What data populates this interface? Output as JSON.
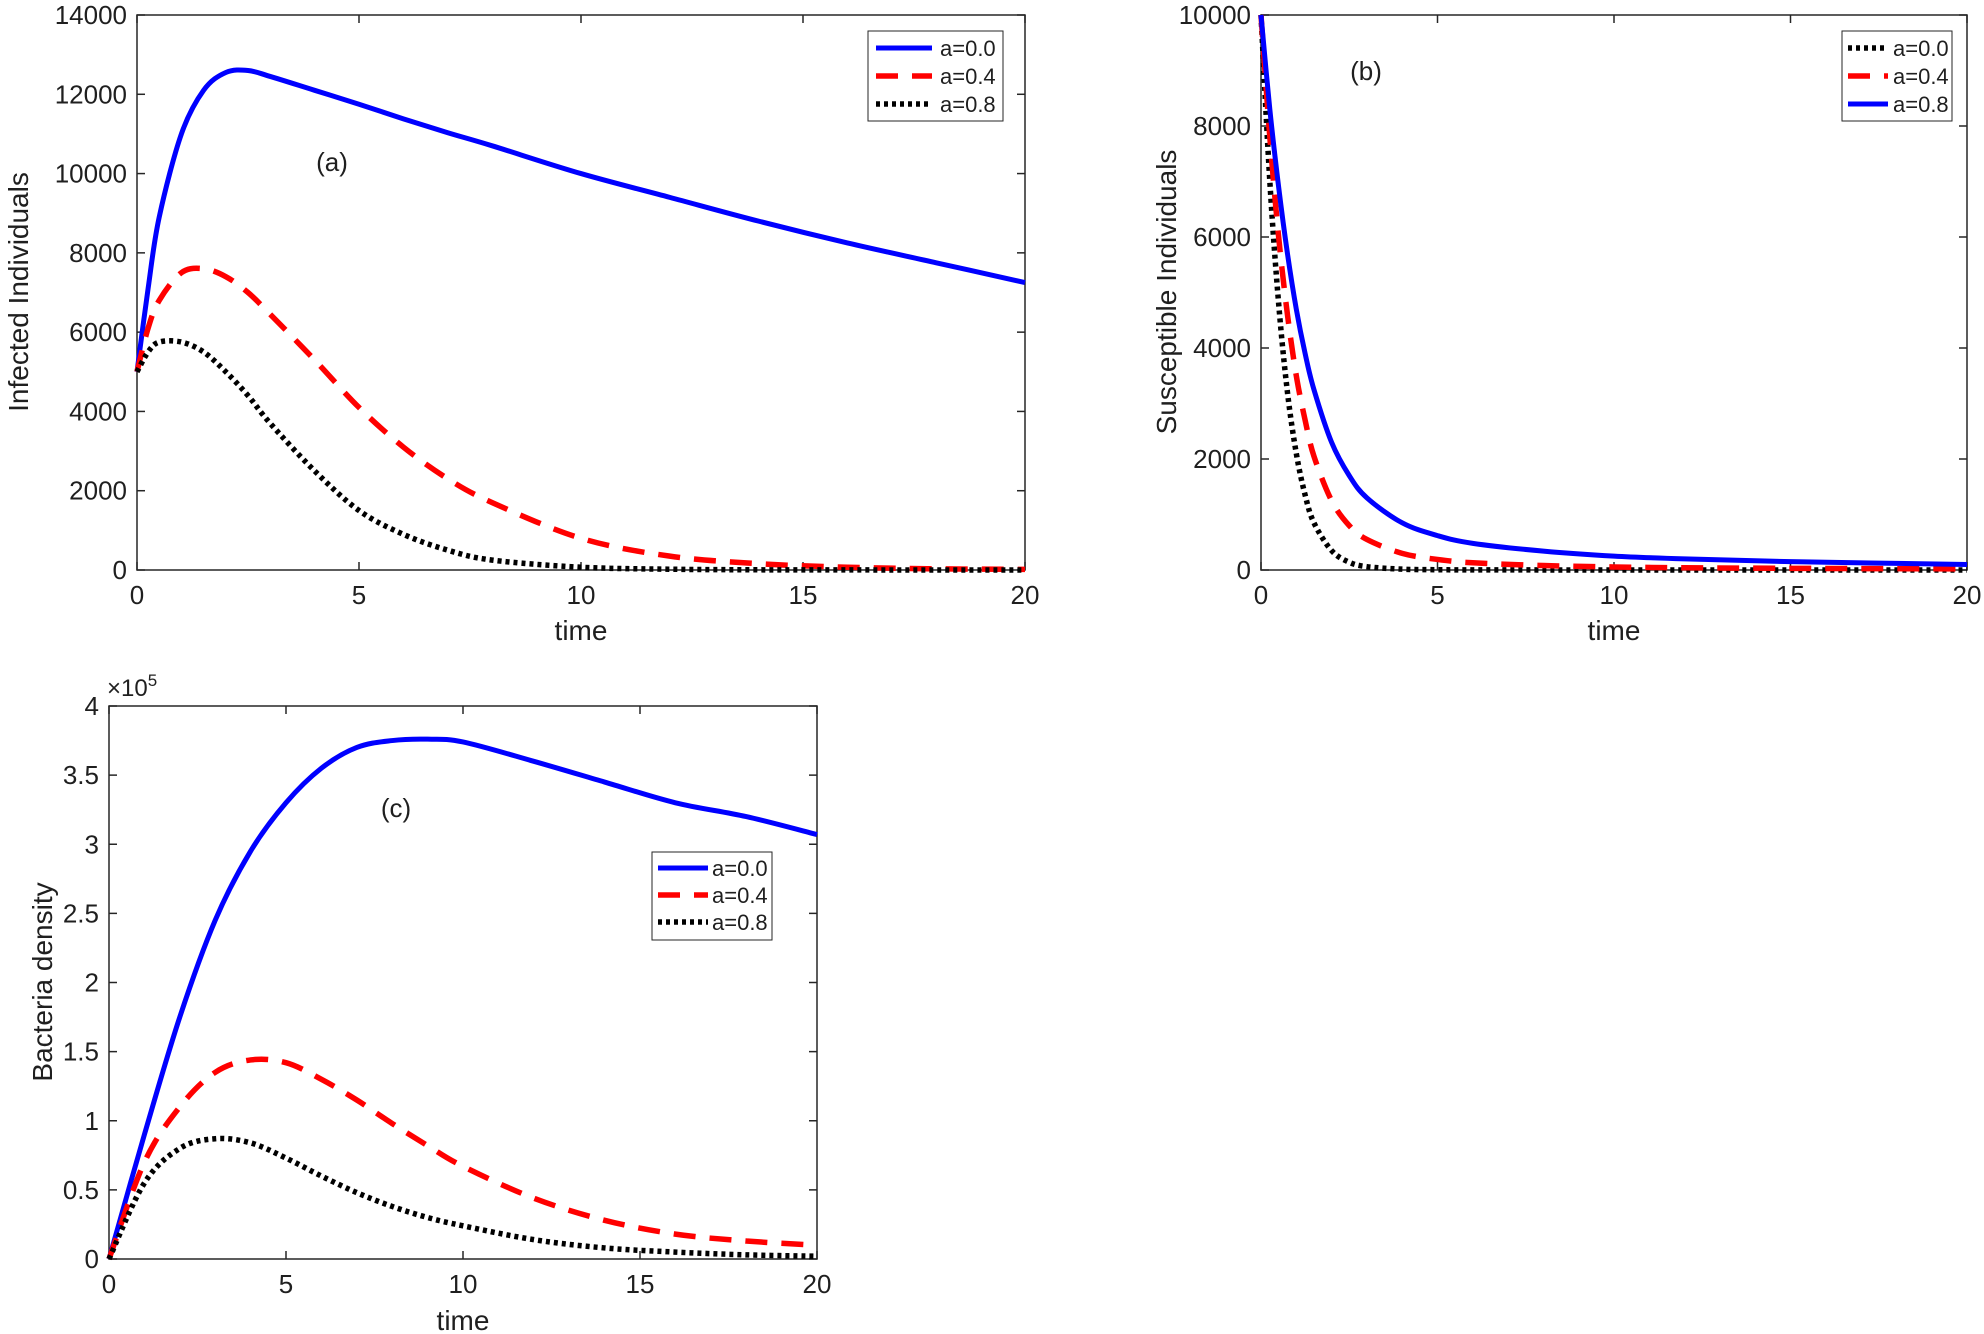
{
  "figure": {
    "background": "#ffffff"
  },
  "chart_data": [
    {
      "id": "a",
      "type": "line",
      "panel_label": "(a)",
      "title": "",
      "xlabel": "time",
      "ylabel": "Infected Individuals",
      "xlim": [
        0,
        20
      ],
      "ylim": [
        0,
        14000
      ],
      "xticks": [
        0,
        5,
        10,
        15,
        20
      ],
      "yticks": [
        0,
        2000,
        4000,
        6000,
        8000,
        10000,
        12000,
        14000
      ],
      "legend_location": "top-right",
      "grid": false,
      "x": [
        0,
        0.25,
        0.5,
        1,
        1.5,
        2,
        2.5,
        3,
        4,
        5,
        6,
        7,
        8,
        10,
        12,
        14,
        16,
        18,
        20
      ],
      "series": [
        {
          "name": "a=0.0",
          "color": "#0000ff",
          "style": "solid",
          "values": [
            5000,
            7100,
            8900,
            11000,
            12100,
            12550,
            12600,
            12450,
            12100,
            11750,
            11380,
            11030,
            10700,
            10000,
            9400,
            8800,
            8250,
            7750,
            7250
          ]
        },
        {
          "name": "a=0.4",
          "color": "#ff0000",
          "style": "dashed",
          "values": [
            5000,
            6100,
            6800,
            7500,
            7600,
            7400,
            7000,
            6450,
            5300,
            4100,
            3100,
            2300,
            1700,
            800,
            350,
            160,
            70,
            30,
            15
          ]
        },
        {
          "name": "a=0.8",
          "color": "#000000",
          "style": "dotted",
          "values": [
            5000,
            5500,
            5750,
            5750,
            5500,
            5000,
            4400,
            3700,
            2500,
            1500,
            900,
            500,
            250,
            70,
            20,
            5,
            2,
            1,
            0
          ]
        }
      ]
    },
    {
      "id": "b",
      "type": "line",
      "panel_label": "(b)",
      "title": "",
      "xlabel": "time",
      "ylabel": "Susceptible Individuals",
      "xlim": [
        0,
        20
      ],
      "ylim": [
        0,
        10000
      ],
      "xticks": [
        0,
        5,
        10,
        15,
        20
      ],
      "yticks": [
        0,
        2000,
        4000,
        6000,
        8000,
        10000
      ],
      "legend_location": "top-right",
      "grid": false,
      "x": [
        0,
        0.25,
        0.5,
        0.75,
        1,
        1.25,
        1.5,
        2,
        2.5,
        3,
        4,
        5,
        6,
        8,
        10,
        12,
        15,
        20
      ],
      "series": [
        {
          "name": "a=0.0",
          "color": "#000000",
          "style": "dotted",
          "values": [
            10000,
            7000,
            4800,
            3200,
            2100,
            1350,
            850,
            350,
            140,
            60,
            15,
            5,
            2,
            1,
            0,
            0,
            0,
            0
          ]
        },
        {
          "name": "a=0.4",
          "color": "#ff0000",
          "style": "dashed",
          "values": [
            10000,
            7800,
            6000,
            4600,
            3500,
            2700,
            2050,
            1250,
            800,
            550,
            300,
            190,
            130,
            80,
            55,
            40,
            30,
            20
          ]
        },
        {
          "name": "a=0.8",
          "color": "#0000ff",
          "style": "solid",
          "values": [
            10000,
            8300,
            6900,
            5700,
            4700,
            3900,
            3250,
            2300,
            1700,
            1300,
            850,
            620,
            480,
            340,
            250,
            200,
            150,
            100
          ]
        }
      ]
    },
    {
      "id": "c",
      "type": "line",
      "panel_label": "(c)",
      "title": "",
      "xlabel": "time",
      "ylabel": "Bacteria density",
      "y_exponent_label": "×10",
      "y_exponent": "5",
      "xlim": [
        0,
        20
      ],
      "ylim": [
        0,
        4
      ],
      "xticks": [
        0,
        5,
        10,
        15,
        20
      ],
      "yticks": [
        0,
        0.5,
        1,
        1.5,
        2,
        2.5,
        3,
        3.5,
        4
      ],
      "legend_location": "center-right",
      "grid": false,
      "x": [
        0,
        1,
        2,
        3,
        4,
        5,
        6,
        7,
        8,
        9,
        10,
        12,
        14,
        16,
        18,
        20
      ],
      "series": [
        {
          "name": "a=0.0",
          "color": "#0000ff",
          "style": "solid",
          "values": [
            0,
            0.9,
            1.75,
            2.45,
            2.95,
            3.3,
            3.55,
            3.7,
            3.75,
            3.76,
            3.74,
            3.6,
            3.45,
            3.3,
            3.2,
            3.07
          ]
        },
        {
          "name": "a=0.4",
          "color": "#ff0000",
          "style": "dashed",
          "values": [
            0,
            0.7,
            1.1,
            1.35,
            1.44,
            1.42,
            1.3,
            1.15,
            0.98,
            0.82,
            0.67,
            0.44,
            0.28,
            0.18,
            0.13,
            0.1
          ]
        },
        {
          "name": "a=0.8",
          "color": "#000000",
          "style": "dotted",
          "values": [
            0,
            0.55,
            0.8,
            0.87,
            0.84,
            0.73,
            0.6,
            0.48,
            0.38,
            0.3,
            0.24,
            0.14,
            0.08,
            0.05,
            0.03,
            0.02
          ]
        }
      ]
    }
  ]
}
